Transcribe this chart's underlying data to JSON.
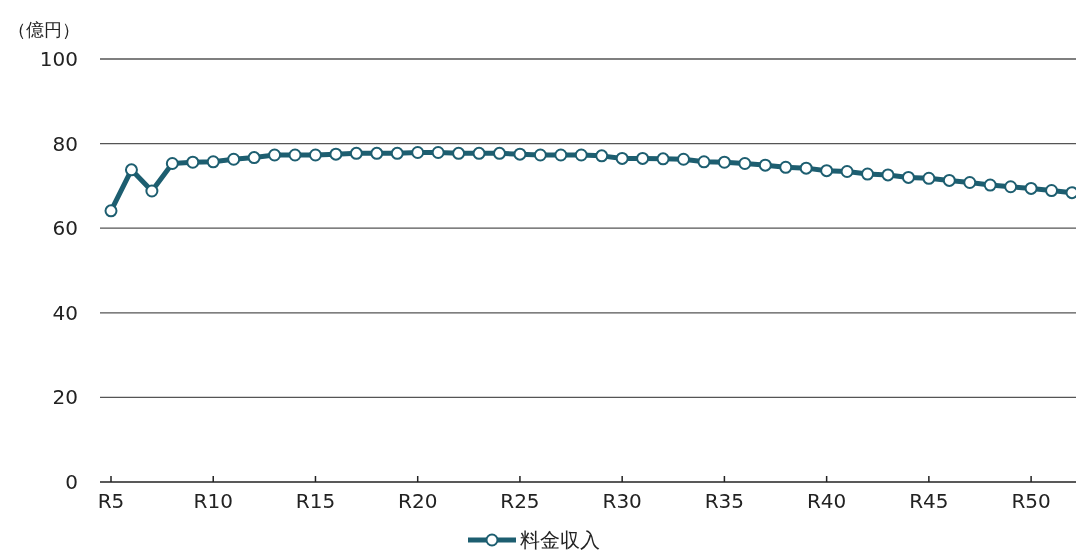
{
  "chart_data": {
    "type": "line",
    "ylabel": "（億円）",
    "categories": [
      "R5",
      null,
      null,
      null,
      null,
      "R10",
      null,
      null,
      null,
      null,
      "R15",
      null,
      null,
      null,
      null,
      "R20",
      null,
      null,
      null,
      null,
      "R25",
      null,
      null,
      null,
      null,
      "R30",
      null,
      null,
      null,
      null,
      "R35",
      null,
      null,
      null,
      null,
      "R40",
      null,
      null,
      null,
      null,
      "R45",
      null,
      null,
      null,
      null,
      "R50",
      null,
      null
    ],
    "series": [
      {
        "name": "料金収入",
        "color": "#1d5e70",
        "values": [
          64.1,
          73.8,
          68.8,
          75.3,
          75.6,
          75.7,
          76.3,
          76.7,
          77.3,
          77.3,
          77.3,
          77.5,
          77.7,
          77.7,
          77.7,
          77.9,
          77.9,
          77.7,
          77.7,
          77.7,
          77.5,
          77.3,
          77.3,
          77.3,
          77.1,
          76.5,
          76.5,
          76.4,
          76.3,
          75.7,
          75.6,
          75.3,
          74.9,
          74.4,
          74.2,
          73.6,
          73.4,
          72.8,
          72.6,
          72.0,
          71.8,
          71.3,
          70.8,
          70.2,
          69.8,
          69.4,
          68.9,
          68.4
        ]
      }
    ],
    "ylim": [
      0,
      100
    ],
    "yticks": [
      0,
      20,
      40,
      60,
      80,
      100
    ],
    "grid": "y",
    "legend": "bottom",
    "marker": "circle",
    "line_style": "solid"
  }
}
